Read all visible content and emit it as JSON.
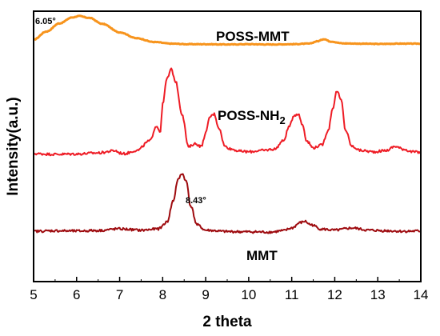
{
  "chart_data": {
    "type": "line",
    "xlabel": "2 theta",
    "ylabel": "Intensity(a.u.)",
    "xlim": [
      5,
      14
    ],
    "ylim": [
      0,
      100
    ],
    "x_ticks": [
      "5",
      "6",
      "7",
      "8",
      "9",
      "10",
      "11",
      "12",
      "13",
      "14"
    ],
    "grid": false,
    "legend": "none",
    "series": [
      {
        "name": "POSS-MMT",
        "color": "#f7941d",
        "x": [
          5.0,
          5.3,
          5.6,
          5.9,
          6.05,
          6.3,
          6.6,
          7.0,
          7.4,
          7.8,
          8.2,
          8.6,
          9.0,
          9.5,
          10.0,
          10.5,
          11.0,
          11.4,
          11.6,
          11.75,
          11.9,
          12.2,
          12.6,
          13.0,
          13.5,
          14.0
        ],
        "values": [
          89.5,
          92.5,
          95.5,
          97.7,
          98.2,
          97.5,
          95.3,
          92.2,
          90.0,
          88.6,
          88.0,
          87.8,
          87.8,
          87.7,
          87.8,
          87.7,
          87.8,
          88.0,
          88.9,
          89.7,
          88.8,
          88.1,
          88.0,
          87.9,
          88.0,
          88.0
        ]
      },
      {
        "name": "POSS-NH2",
        "color": "#ee1c25",
        "x": [
          5.0,
          5.5,
          6.0,
          6.5,
          6.9,
          7.0,
          7.1,
          7.4,
          7.7,
          7.85,
          7.95,
          8.0,
          8.1,
          8.2,
          8.3,
          8.45,
          8.6,
          8.75,
          8.9,
          9.0,
          9.1,
          9.2,
          9.3,
          9.45,
          9.6,
          9.8,
          10.0,
          10.3,
          10.6,
          10.8,
          10.95,
          11.05,
          11.15,
          11.25,
          11.35,
          11.5,
          11.7,
          11.85,
          11.95,
          12.05,
          12.15,
          12.25,
          12.4,
          12.6,
          12.9,
          13.2,
          13.4,
          13.6,
          13.8,
          14.0
        ],
        "values": [
          47.3,
          47.1,
          47.2,
          47.6,
          48.4,
          47.6,
          47.3,
          48.5,
          52.0,
          57.5,
          55.5,
          66.0,
          75.0,
          78.5,
          74.0,
          62.0,
          49.8,
          51.0,
          50.0,
          55.0,
          61.0,
          62.0,
          57.0,
          50.0,
          49.0,
          48.2,
          48.0,
          48.5,
          49.0,
          52.0,
          57.5,
          61.5,
          62.0,
          58.0,
          52.0,
          49.5,
          50.5,
          56.0,
          64.0,
          70.5,
          67.0,
          56.0,
          50.0,
          48.5,
          48.0,
          48.5,
          50.0,
          49.0,
          48.0,
          47.8
        ]
      },
      {
        "name": "MMT",
        "color": "#9e0b0f",
        "x": [
          5.0,
          5.5,
          6.0,
          6.5,
          7.0,
          7.5,
          7.9,
          8.1,
          8.25,
          8.35,
          8.45,
          8.55,
          8.65,
          8.8,
          9.0,
          9.5,
          10.0,
          10.5,
          10.8,
          11.0,
          11.2,
          11.3,
          11.45,
          11.7,
          12.0,
          12.4,
          12.8,
          13.2,
          13.6,
          14.0
        ],
        "values": [
          18.6,
          18.8,
          18.7,
          18.9,
          19.5,
          19.0,
          19.5,
          22.0,
          30.0,
          37.5,
          40.0,
          37.0,
          28.0,
          21.0,
          19.0,
          18.5,
          18.4,
          18.3,
          18.8,
          19.8,
          21.8,
          22.3,
          21.0,
          19.4,
          19.0,
          19.8,
          19.0,
          18.8,
          18.6,
          18.7
        ]
      }
    ],
    "labels": [
      {
        "text": "POSS-MMT",
        "series": "POSS-MMT"
      },
      {
        "text": "POSS-NH",
        "sub": "2",
        "series": "POSS-NH2"
      },
      {
        "text": "MMT",
        "series": "MMT"
      }
    ],
    "annotations": [
      {
        "text": "6.05°",
        "x": 6.05
      },
      {
        "text": "8.43°",
        "x": 8.43
      }
    ]
  }
}
